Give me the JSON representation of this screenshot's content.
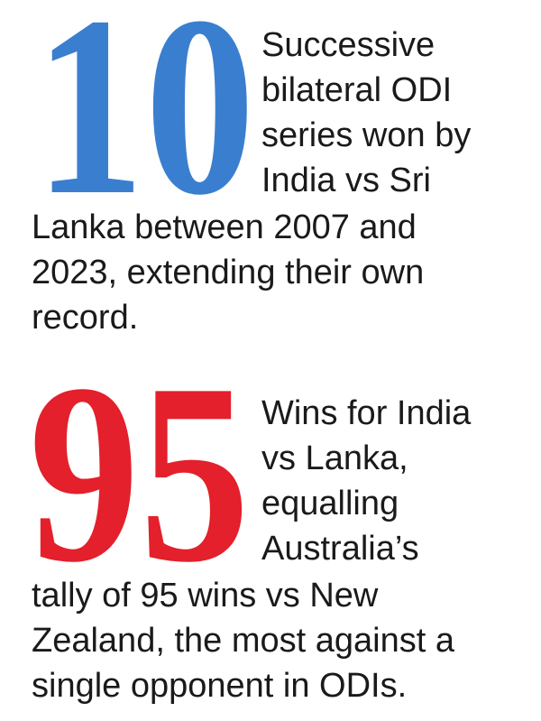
{
  "stats": [
    {
      "number": "10",
      "lines": [
        "Successive",
        "bilateral ODI",
        "series won by",
        "India vs Sri",
        "Lanka between 2007 and",
        "2023, extending their own",
        "record."
      ]
    },
    {
      "number": "95",
      "lines": [
        "Wins for India",
        "vs Lanka,",
        "equalling",
        "Australia’s",
        "tally of 95 wins vs New",
        "Zealand, the most against a",
        "single opponent in ODIs."
      ]
    }
  ]
}
